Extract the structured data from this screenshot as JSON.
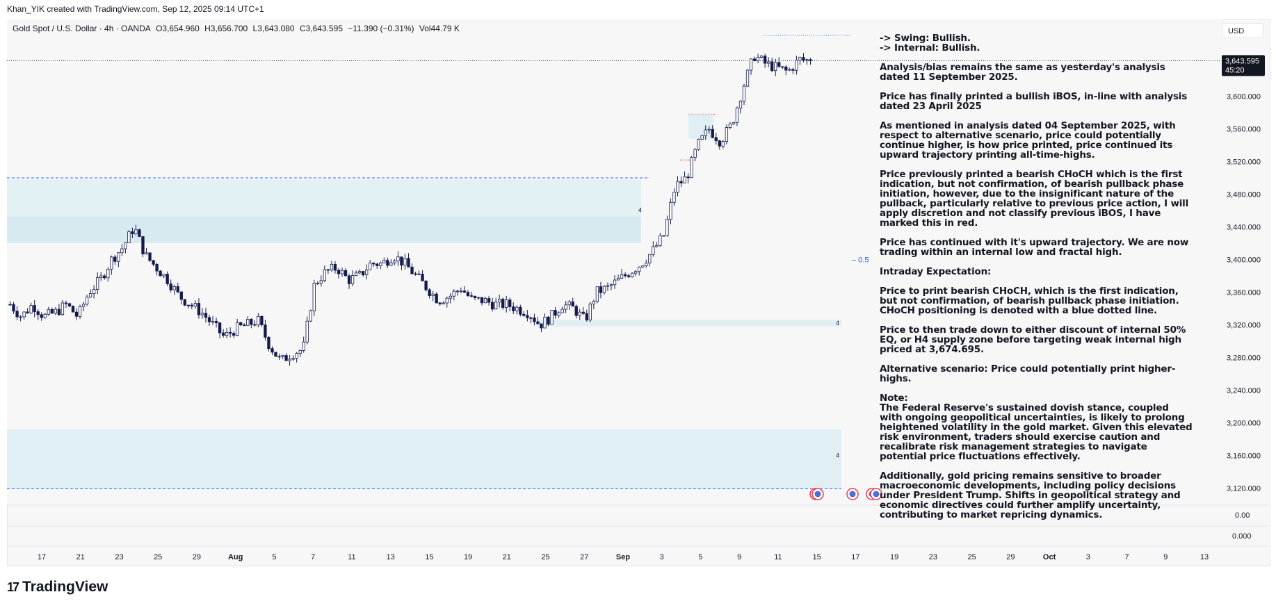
{
  "header": {
    "created_by": "Khan_YIK created with TradingView.com, Sep 12, 2025 09:14 UTC+1"
  },
  "legend": {
    "symbol": "Gold Spot / U.S. Dollar · 4h · OANDA",
    "open": "O3,654.960",
    "high": "H3,656.700",
    "low": "L3,643.080",
    "close": "C3,643.595",
    "change": "−11.390 (−0.31%)",
    "volume": "Vol44.79 K"
  },
  "currency": "USD",
  "last_price": {
    "price": "3,643.595",
    "countdown": "45:20"
  },
  "indicator_pane_labels": [
    "0.00",
    "0.000"
  ],
  "fib_label": "0.5",
  "zone_labels": [
    "4",
    "4",
    "4"
  ],
  "colors": {
    "background": "#f8f7f8",
    "candle": "#131b4b",
    "zone": "#dfeff3",
    "dotted_blue": "#2962ff",
    "bos_red": "#f23645"
  },
  "notes": {
    "swing": "-> Swing:  Bullish.",
    "internal": "-> Internal:  Bullish.",
    "p1": "Analysis/bias remains the same as yesterday's analysis dated 11 September 2025.",
    "p2": "Price has finally printed a bullish iBOS, in-line with analysis dated 23 April 2025",
    "p3": "As mentioned in analysis dated 04 September 2025, with respect to alternative scenario, price could potentially continue higher, is how price printed, price continued its upward trajectory printing all-time-highs.",
    "p4": "Price previously printed a bearish CHoCH which is the first indication, but not confirmation, of bearish pullback phase initiation, however, due to the insignificant nature of the pullback, particularly relative to previous price action, I will apply discretion and not classify previous iBOS, I have marked this in red.",
    "p5": "Price has continued with it's upward trajectory.  We are now trading within an internal low and fractal high.",
    "p6": "Intraday Expectation:",
    "p7": "Price to print bearish CHoCH, which is the first indication, but not confirmation, of bearish pullback phase initiation.   CHoCH positioning is denoted with a blue dotted line.",
    "p8": "Price to then trade down to either discount of internal 50% EQ, or H4 supply zone before targeting weak internal high priced at 3,674.695.",
    "p9": "Alternative scenario:  Price could potentially print higher-highs.",
    "p10_title": "Note:",
    "p10": "The Federal Reserve's sustained dovish stance, coupled with ongoing geopolitical uncertainties, is likely to prolong heightened volatility in the gold market. Given this elevated risk environment, traders should exercise caution and recalibrate risk management strategies to navigate potential price fluctuations effectively.",
    "p11": "Additionally, gold pricing remains sensitive to broader macroeconomic developments, including policy decisions under President Trump. Shifts in geopolitical strategy and economic directives could further amplify uncertainty, contributing to market repricing dynamics."
  },
  "footer": {
    "brand": "TradingView",
    "mark": "17"
  },
  "chart_data": {
    "type": "candlestick",
    "symbol": "Gold Spot / U.S. Dollar",
    "interval": "4h",
    "y_ticks": [
      3120,
      3160,
      3200,
      3240,
      3280,
      3320,
      3360,
      3400,
      3440,
      3480,
      3520,
      3560,
      3600
    ],
    "y_tick_labels": [
      "3,120.000",
      "3,160.000",
      "3,200.000",
      "3,240.000",
      "3,280.000",
      "3,320.000",
      "3,360.000",
      "3,400.000",
      "3,440.000",
      "3,480.000",
      "3,520.000",
      "3,560.000",
      "3,600.000"
    ],
    "ylim": [
      3105,
      3695
    ],
    "x_tick_labels": [
      "17",
      "21",
      "23",
      "25",
      "29",
      "Aug",
      "5",
      "7",
      "11",
      "13",
      "15",
      "19",
      "21",
      "25",
      "27",
      "Sep",
      "3",
      "5",
      "9",
      "11",
      "15",
      "17",
      "19",
      "23",
      "25",
      "29",
      "Oct",
      "3",
      "7",
      "9",
      "13"
    ],
    "anchor_closes": [
      3345,
      3330,
      3345,
      3330,
      3335,
      3345,
      3330,
      3360,
      3375,
      3400,
      3415,
      3440,
      3405,
      3390,
      3375,
      3355,
      3345,
      3335,
      3320,
      3305,
      3315,
      3320,
      3325,
      3295,
      3275,
      3285,
      3290,
      3370,
      3385,
      3390,
      3375,
      3380,
      3395,
      3395,
      3405,
      3395,
      3380,
      3365,
      3350,
      3355,
      3365,
      3350,
      3350,
      3345,
      3345,
      3340,
      3335,
      3320,
      3330,
      3345,
      3340,
      3325,
      3360,
      3365,
      3375,
      3385,
      3395,
      3410,
      3430,
      3490,
      3500,
      3540,
      3560,
      3545,
      3565,
      3610,
      3650,
      3640,
      3635,
      3630,
      3645,
      3643.595
    ],
    "last_close": 3643.595,
    "annotations": [
      {
        "kind": "supply-zone",
        "y_range": [
          3420,
          3498
        ],
        "label": "4"
      },
      {
        "kind": "demand-zone",
        "y_range": [
          3318,
          3326
        ],
        "label": "4"
      },
      {
        "kind": "demand-zone",
        "y_range": [
          3119,
          3192
        ],
        "label": "4"
      },
      {
        "kind": "choch-dotted",
        "y": 3500
      },
      {
        "kind": "weak-high",
        "y": 3674.695
      },
      {
        "kind": "fib-0.5",
        "y": 3400
      }
    ]
  }
}
